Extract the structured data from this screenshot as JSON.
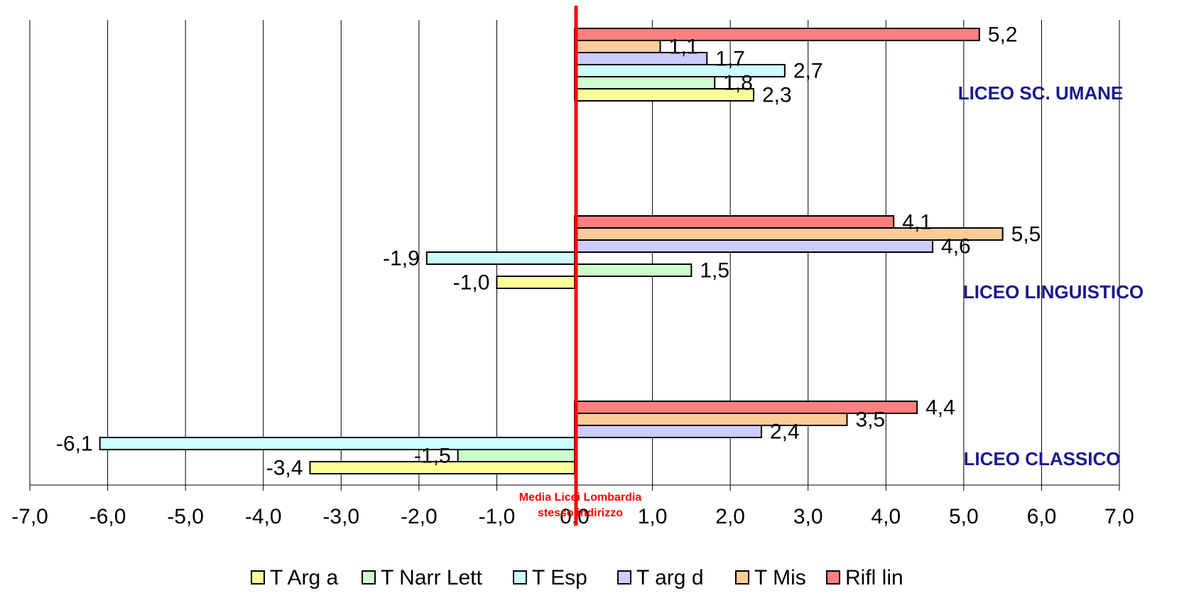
{
  "chart_data": {
    "type": "bar",
    "orientation": "horizontal",
    "categories": [
      "LICEO SC. UMANE",
      "LICEO LINGUISTICO",
      "LICEO CLASSICO"
    ],
    "series": [
      {
        "name": "T Arg a",
        "color": "#ffff99",
        "values": [
          2.3,
          -1.0,
          -3.4
        ],
        "labels": [
          "2,3",
          "-1,0",
          "-3,4"
        ]
      },
      {
        "name": "T Narr Lett",
        "color": "#ccffcc",
        "values": [
          1.8,
          1.5,
          -1.5
        ],
        "labels": [
          "1,8",
          "1,5",
          "-1,5"
        ]
      },
      {
        "name": "T Esp",
        "color": "#ccffff",
        "values": [
          2.7,
          -1.9,
          -6.1
        ],
        "labels": [
          "2,7",
          "-1,9",
          "-6,1"
        ]
      },
      {
        "name": "T arg d",
        "color": "#ccccff",
        "values": [
          1.7,
          4.6,
          2.4
        ],
        "labels": [
          "1,7",
          "4,6",
          "2,4"
        ]
      },
      {
        "name": "T Mis",
        "color": "#ffcc99",
        "values": [
          1.1,
          5.5,
          3.5
        ],
        "labels": [
          "1,1",
          "5,5",
          "3,5"
        ]
      },
      {
        "name": "Rifl lin",
        "color": "#ff8080",
        "values": [
          5.2,
          4.1,
          4.4
        ],
        "labels": [
          "5,2",
          "4,1",
          "4,4"
        ]
      }
    ],
    "xlim": [
      -7,
      7
    ],
    "x_ticks": [
      -7,
      -6,
      -5,
      -4,
      -3,
      -2,
      -1,
      0,
      1,
      2,
      3,
      4,
      5,
      6,
      7
    ],
    "x_tick_labels": [
      "-7,0",
      "-6,0",
      "-5,0",
      "-4,0",
      "-3,0",
      "-2,0",
      "-1,0",
      "0,0",
      "1,0",
      "2,0",
      "3,0",
      "4,0",
      "5,0",
      "6,0",
      "7,0"
    ],
    "grid": "vertical",
    "legend_position": "bottom",
    "reference_line": {
      "value": 0,
      "color": "#ff0000",
      "label_lines": [
        "Media Licei Lombardia",
        "stesso indirizzo"
      ]
    }
  }
}
